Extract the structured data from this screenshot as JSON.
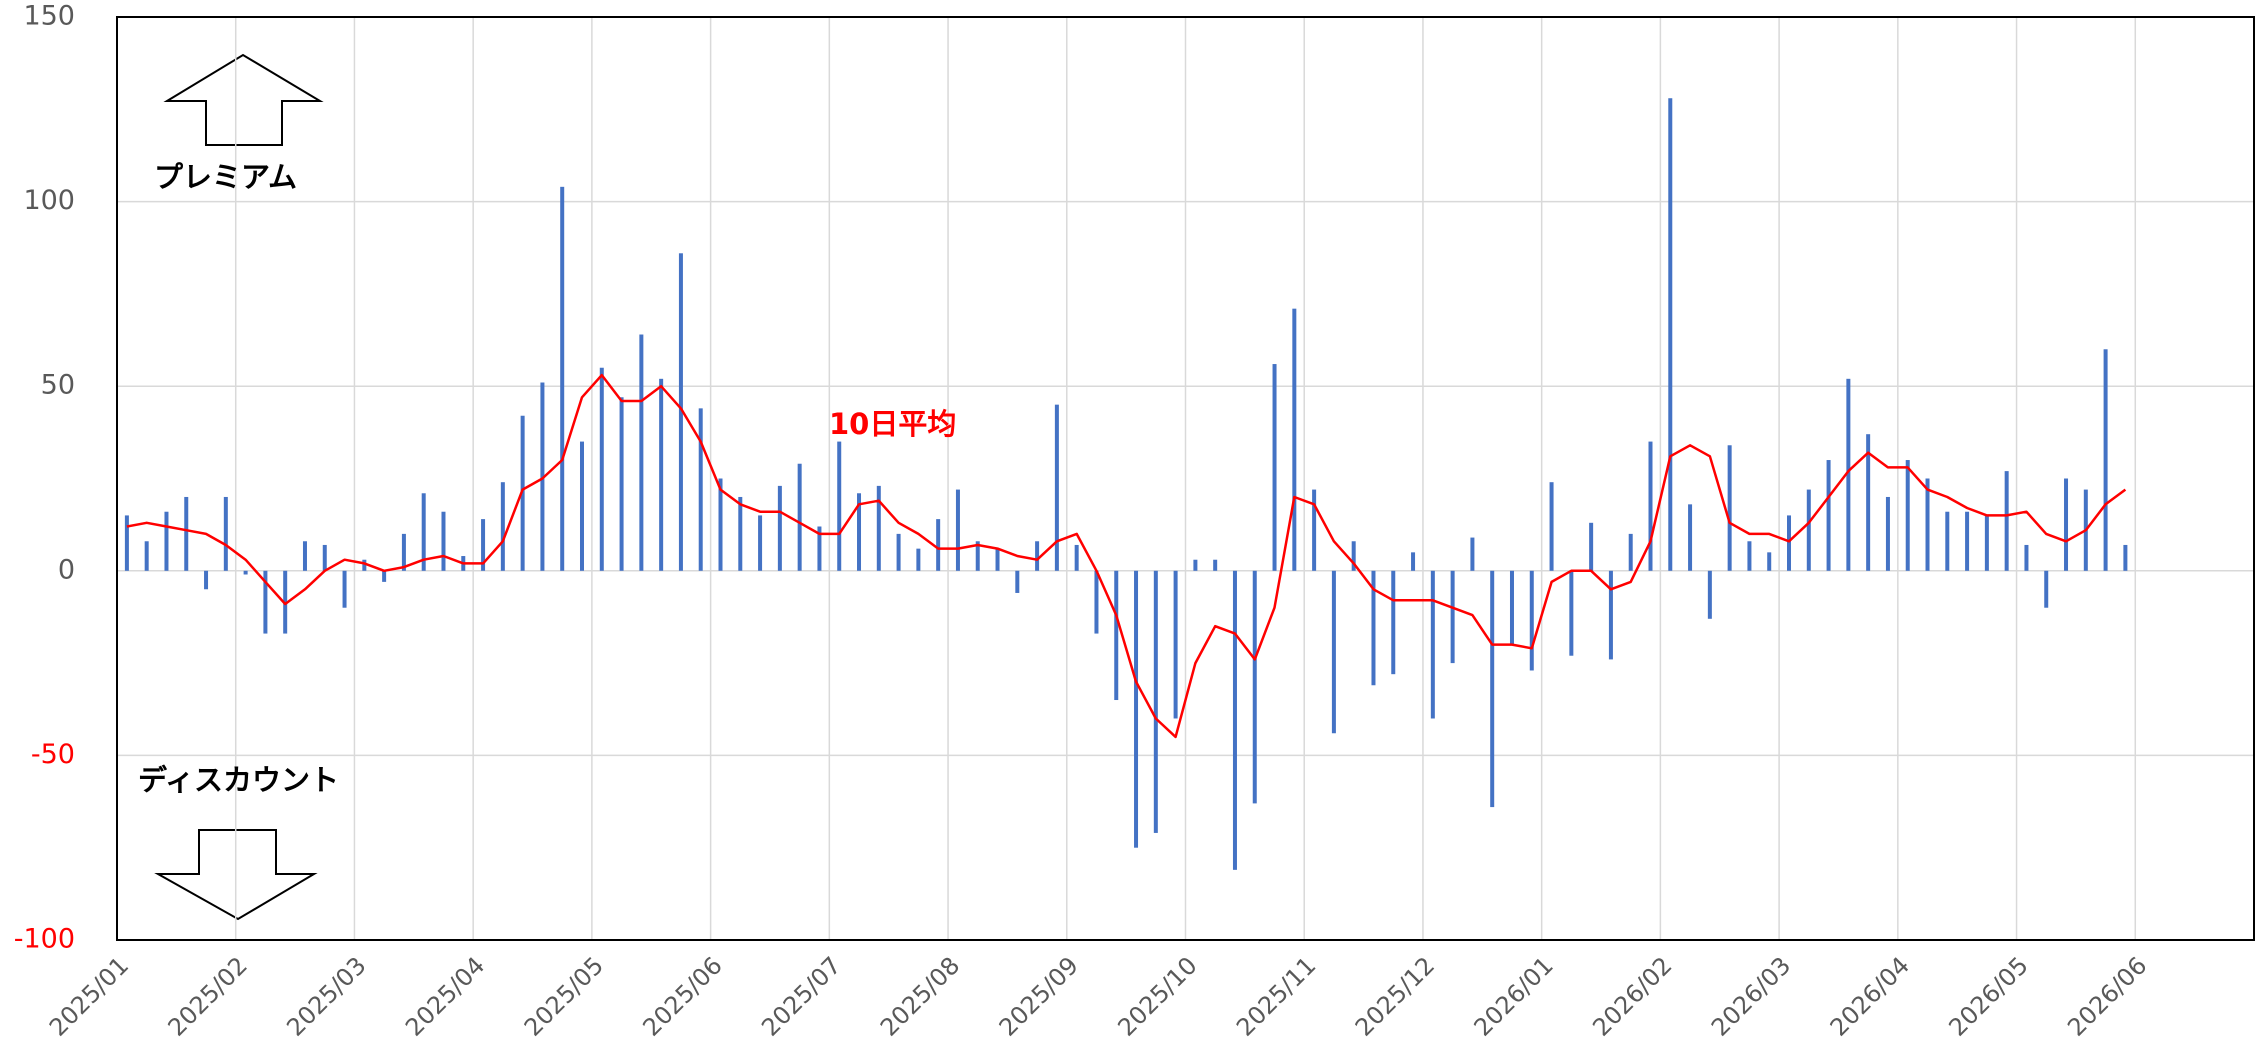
{
  "chart_data": {
    "type": "bar_line",
    "annotations": {
      "premium": "プレミアム",
      "discount": "ディスカウント",
      "average": "10日平均"
    },
    "categories": [
      "2025/01",
      null,
      null,
      null,
      null,
      null,
      "2025/02",
      null,
      null,
      null,
      null,
      null,
      "2025/03",
      null,
      null,
      null,
      null,
      null,
      "2025/04",
      null,
      null,
      null,
      null,
      null,
      "2025/05",
      null,
      null,
      null,
      null,
      null,
      "2025/06",
      null,
      null,
      null,
      null,
      null,
      "2025/07",
      null,
      null,
      null,
      null,
      null,
      "2025/08",
      null,
      null,
      null,
      null,
      null,
      "2025/09",
      null,
      null,
      null,
      null,
      null,
      "2025/10",
      null,
      null,
      null,
      null,
      null,
      "2025/11",
      null,
      null,
      null,
      null,
      null,
      "2025/12",
      null,
      null,
      null,
      null,
      null,
      "2026/01",
      null,
      null,
      null,
      null,
      null,
      "2026/02",
      null,
      null,
      null,
      null,
      null,
      "2026/03",
      null,
      null,
      null,
      null,
      null,
      "2026/04",
      null,
      null,
      null,
      null,
      null,
      "2026/05",
      null,
      null,
      null,
      null,
      null,
      "2026/06",
      null,
      null,
      null,
      null,
      null
    ],
    "series": [
      {
        "kind": "bar",
        "color": "#4472c4",
        "values": [
          15,
          8,
          16,
          20,
          -5,
          20,
          -1,
          -17,
          -17,
          8,
          7,
          -10,
          3,
          -3,
          10,
          21,
          16,
          4,
          14,
          24,
          42,
          51,
          104,
          35,
          55,
          47,
          64,
          52,
          86,
          44,
          25,
          20,
          15,
          23,
          29,
          12,
          35,
          21,
          23,
          10,
          6,
          14,
          22,
          8,
          6,
          -6,
          8,
          45,
          7,
          -17,
          -35,
          -75,
          -71,
          -40,
          3,
          3,
          -81,
          -63,
          56,
          71,
          22,
          -44,
          8,
          -31,
          -28,
          5,
          -40,
          -25,
          9,
          -64,
          -20,
          -27,
          24,
          -23,
          13,
          -24,
          10,
          35,
          128,
          18,
          -13,
          34,
          8,
          5,
          15,
          22,
          30,
          52,
          37,
          20,
          30,
          25,
          16,
          16,
          15,
          27,
          7,
          -10,
          25,
          22,
          60,
          7,
          null,
          null,
          null,
          null,
          null,
          null
        ]
      },
      {
        "kind": "line",
        "color": "#ff0000",
        "values": [
          12,
          13,
          12,
          11,
          10,
          7,
          3,
          -3,
          -9,
          -5,
          0,
          3,
          2,
          0,
          1,
          3,
          4,
          2,
          2,
          8,
          22,
          25,
          30,
          47,
          53,
          46,
          46,
          50,
          44,
          35,
          22,
          18,
          16,
          16,
          13,
          10,
          10,
          18,
          19,
          13,
          10,
          6,
          6,
          7,
          6,
          4,
          3,
          8,
          10,
          0,
          -12,
          -30,
          -40,
          -45,
          -25,
          -15,
          -17,
          -24,
          -10,
          20,
          18,
          8,
          2,
          -5,
          -8,
          -8,
          -8,
          -10,
          -12,
          -20,
          -20,
          -21,
          -3,
          0,
          0,
          -5,
          -3,
          8,
          31,
          34,
          31,
          13,
          10,
          10,
          8,
          13,
          20,
          27,
          32,
          28,
          28,
          22,
          20,
          17,
          15,
          15,
          16,
          10,
          8,
          11,
          18,
          22,
          null,
          null,
          null,
          null,
          null,
          null
        ]
      }
    ],
    "ylim": [
      -100,
      150
    ],
    "yticks": [
      -100,
      -50,
      0,
      50,
      100,
      150
    ],
    "negative_tick_color": "#ff0000",
    "tick_color": "#595959",
    "grid": true
  }
}
